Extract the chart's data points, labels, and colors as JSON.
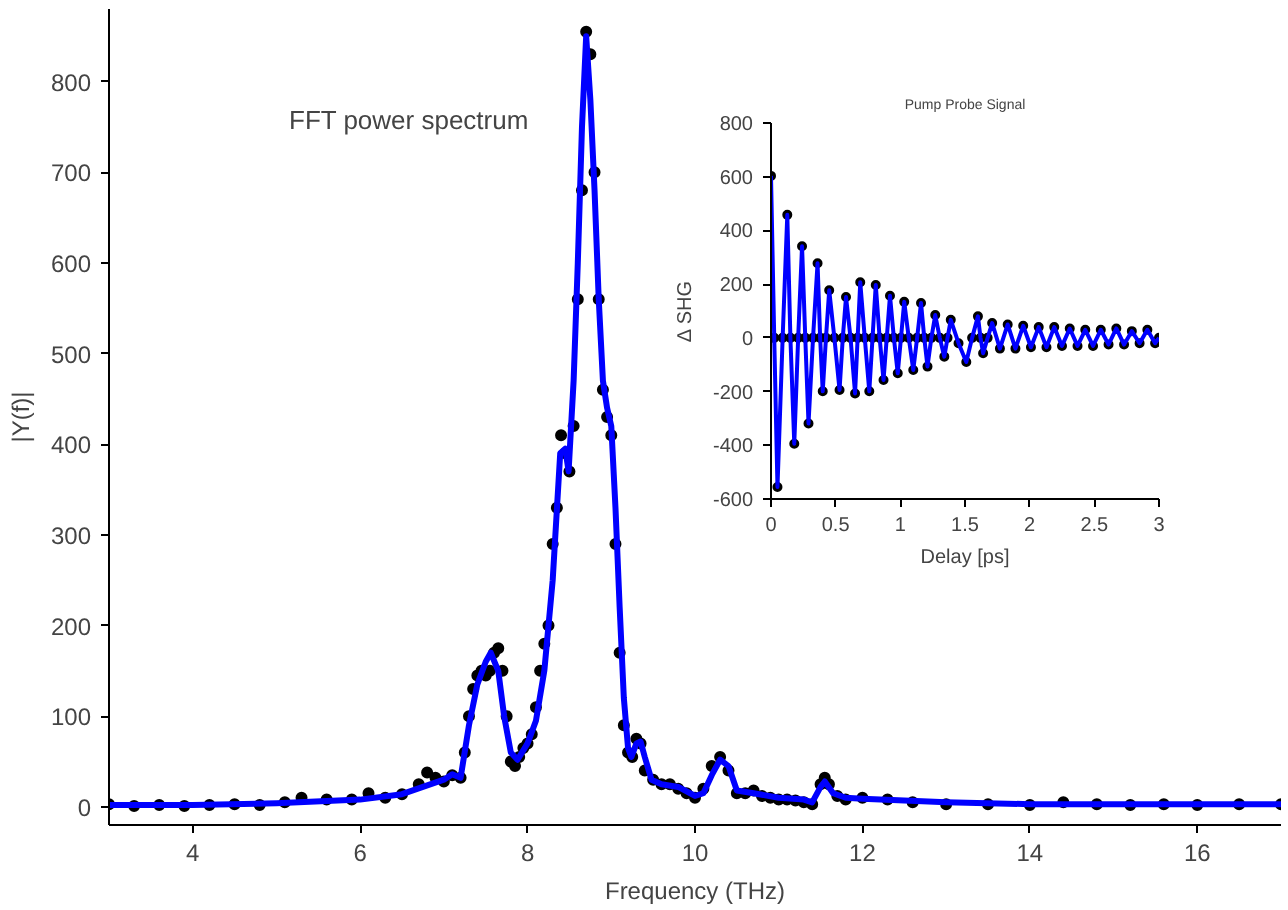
{
  "chart_data": [
    {
      "type": "line",
      "xlabel": "Frequency (THz)",
      "ylabel": "|Y(f)|",
      "annotations": [
        "FFT power spectrum"
      ],
      "xlim": [
        3,
        17
      ],
      "ylim": [
        -20,
        880
      ],
      "xticks": [
        4,
        6,
        8,
        10,
        12,
        14,
        16
      ],
      "yticks": [
        0,
        100,
        200,
        300,
        400,
        500,
        600,
        700,
        800
      ],
      "grid": false,
      "series": [
        {
          "type": "scatter",
          "marker": "circle",
          "color": "#000000",
          "x": [
            3,
            3.3,
            3.6,
            3.9,
            4.2,
            4.5,
            4.8,
            5.1,
            5.3,
            5.6,
            5.9,
            6.1,
            6.3,
            6.5,
            6.7,
            6.8,
            6.9,
            7.0,
            7.1,
            7.2,
            7.25,
            7.3,
            7.35,
            7.4,
            7.45,
            7.5,
            7.55,
            7.6,
            7.65,
            7.7,
            7.75,
            7.8,
            7.85,
            7.9,
            7.95,
            8.0,
            8.05,
            8.1,
            8.15,
            8.2,
            8.25,
            8.3,
            8.35,
            8.4,
            8.45,
            8.5,
            8.55,
            8.6,
            8.65,
            8.7,
            8.75,
            8.8,
            8.85,
            8.9,
            8.95,
            9.0,
            9.05,
            9.1,
            9.15,
            9.2,
            9.25,
            9.3,
            9.35,
            9.4,
            9.5,
            9.6,
            9.7,
            9.8,
            9.9,
            10.0,
            10.1,
            10.2,
            10.3,
            10.4,
            10.5,
            10.6,
            10.7,
            10.8,
            10.9,
            11.0,
            11.1,
            11.2,
            11.3,
            11.4,
            11.5,
            11.55,
            11.6,
            11.7,
            11.8,
            12.0,
            12.3,
            12.6,
            13,
            13.5,
            14,
            14.4,
            14.8,
            15.2,
            15.6,
            16,
            16.5,
            17
          ],
          "values": [
            3,
            1,
            2,
            1,
            2,
            3,
            2,
            5,
            10,
            8,
            8,
            15,
            10,
            14,
            25,
            38,
            32,
            28,
            35,
            32,
            60,
            100,
            130,
            145,
            150,
            145,
            150,
            170,
            175,
            150,
            100,
            50,
            45,
            55,
            65,
            70,
            80,
            110,
            150,
            180,
            200,
            290,
            330,
            410,
            390,
            370,
            420,
            560,
            680,
            855,
            830,
            700,
            560,
            460,
            430,
            410,
            290,
            170,
            90,
            60,
            55,
            75,
            70,
            40,
            30,
            25,
            25,
            20,
            15,
            10,
            20,
            45,
            55,
            40,
            15,
            15,
            18,
            12,
            10,
            8,
            8,
            7,
            5,
            3,
            25,
            32,
            25,
            12,
            8,
            10,
            8,
            5,
            3,
            3,
            2,
            5,
            3,
            2,
            3,
            2,
            3,
            3
          ]
        },
        {
          "color": "#0000ff",
          "x": [
            3,
            4,
            5,
            6,
            6.5,
            7.0,
            7.1,
            7.2,
            7.3,
            7.4,
            7.5,
            7.56,
            7.65,
            7.72,
            7.8,
            7.88,
            8.0,
            8.1,
            8.2,
            8.3,
            8.39,
            8.45,
            8.49,
            8.55,
            8.6,
            8.65,
            8.7,
            8.75,
            8.8,
            8.85,
            8.9,
            8.95,
            9.0,
            9.05,
            9.1,
            9.15,
            9.2,
            9.24,
            9.3,
            9.35,
            9.4,
            9.48,
            9.6,
            9.8,
            10.0,
            10.1,
            10.2,
            10.3,
            10.4,
            10.5,
            10.7,
            11.0,
            11.3,
            11.4,
            11.5,
            11.55,
            11.65,
            11.8,
            12,
            13,
            14,
            15,
            16,
            17
          ],
          "values": [
            2,
            2,
            4,
            8,
            14,
            30,
            36,
            32,
            90,
            135,
            160,
            170,
            150,
            100,
            60,
            52,
            70,
            95,
            150,
            250,
            390,
            395,
            370,
            470,
            600,
            750,
            850,
            780,
            680,
            560,
            470,
            440,
            420,
            330,
            220,
            120,
            65,
            55,
            70,
            72,
            55,
            30,
            25,
            22,
            12,
            15,
            35,
            52,
            45,
            18,
            15,
            10,
            8,
            5,
            22,
            28,
            15,
            10,
            9,
            5,
            3,
            3,
            3,
            3
          ]
        }
      ]
    },
    {
      "type": "line",
      "title": "Pump Probe Signal",
      "xlabel": "Delay [ps]",
      "ylabel": "Δ SHG",
      "xlim": [
        0,
        3
      ],
      "ylim": [
        -600,
        800
      ],
      "xticks": [
        0,
        0.5,
        1,
        1.5,
        2,
        2.5,
        3
      ],
      "yticks": [
        -600,
        -400,
        -200,
        0,
        200,
        400,
        600,
        800
      ],
      "grid": false,
      "series": [
        {
          "type": "scatter",
          "marker": "circle",
          "color": "#000000",
          "x": [
            0,
            0.025,
            0.05,
            0.09,
            0.126,
            0.15,
            0.18,
            0.21,
            0.24,
            0.265,
            0.29,
            0.325,
            0.36,
            0.38,
            0.4,
            0.425,
            0.45,
            0.49,
            0.53,
            0.555,
            0.58,
            0.615,
            0.65,
            0.67,
            0.69,
            0.725,
            0.76,
            0.785,
            0.81,
            0.84,
            0.87,
            0.895,
            0.92,
            0.95,
            0.98,
            1.005,
            1.03,
            1.065,
            1.1,
            1.13,
            1.16,
            1.185,
            1.21,
            1.24,
            1.27,
            1.305,
            1.34,
            1.365,
            1.39,
            1.45,
            1.51,
            1.555,
            1.6,
            1.62,
            1.64,
            1.675,
            1.71,
            1.77,
            1.83,
            1.89,
            1.95,
            2.01,
            2.07,
            2.13,
            2.19,
            2.25,
            2.31,
            2.37,
            2.43,
            2.49,
            2.55,
            2.61,
            2.67,
            2.73,
            2.79,
            2.85,
            2.91,
            2.97,
            3.0
          ],
          "values": [
            603,
            0,
            -555,
            0,
            458,
            0,
            -394,
            0,
            341,
            0,
            -319,
            0,
            278,
            0,
            -199,
            0,
            177,
            0,
            -194,
            0,
            152,
            0,
            -207,
            0,
            207,
            0,
            -199,
            0,
            197,
            0,
            -157,
            0,
            157,
            0,
            -132,
            0,
            134,
            0,
            -120,
            0,
            130,
            0,
            -107,
            0,
            85,
            0,
            -70,
            0,
            67,
            -20,
            -90,
            0,
            80,
            0,
            -57,
            0,
            55,
            -40,
            50,
            -40,
            45,
            -35,
            40,
            -35,
            40,
            -30,
            35,
            -30,
            30,
            -30,
            30,
            -25,
            35,
            -25,
            25,
            -20,
            30,
            -20,
            0
          ]
        },
        {
          "color": "#0000ff",
          "x": [
            0,
            0.025,
            0.05,
            0.09,
            0.126,
            0.15,
            0.18,
            0.21,
            0.24,
            0.265,
            0.29,
            0.325,
            0.36,
            0.38,
            0.4,
            0.425,
            0.45,
            0.49,
            0.53,
            0.555,
            0.58,
            0.615,
            0.65,
            0.67,
            0.69,
            0.725,
            0.76,
            0.785,
            0.81,
            0.84,
            0.87,
            0.895,
            0.92,
            0.95,
            0.98,
            1.005,
            1.03,
            1.065,
            1.1,
            1.13,
            1.16,
            1.185,
            1.21,
            1.24,
            1.27,
            1.305,
            1.34,
            1.365,
            1.39,
            1.45,
            1.51,
            1.555,
            1.6,
            1.62,
            1.64,
            1.675,
            1.71,
            1.77,
            1.83,
            1.89,
            1.95,
            2.01,
            2.07,
            2.13,
            2.19,
            2.25,
            2.31,
            2.37,
            2.43,
            2.49,
            2.55,
            2.61,
            2.67,
            2.73,
            2.79,
            2.85,
            2.91,
            2.97,
            3.0
          ],
          "values": [
            603,
            0,
            -555,
            0,
            458,
            0,
            -394,
            0,
            341,
            0,
            -319,
            0,
            278,
            0,
            -199,
            0,
            177,
            0,
            -194,
            0,
            152,
            0,
            -207,
            0,
            207,
            0,
            -199,
            0,
            197,
            0,
            -157,
            0,
            157,
            0,
            -132,
            0,
            134,
            0,
            -120,
            0,
            130,
            0,
            -107,
            0,
            85,
            0,
            -70,
            0,
            67,
            -20,
            -90,
            0,
            80,
            0,
            -57,
            0,
            55,
            -40,
            50,
            -40,
            45,
            -35,
            40,
            -35,
            40,
            -30,
            35,
            -30,
            30,
            -30,
            30,
            -25,
            35,
            -25,
            25,
            -20,
            30,
            -20,
            0
          ]
        }
      ]
    }
  ]
}
